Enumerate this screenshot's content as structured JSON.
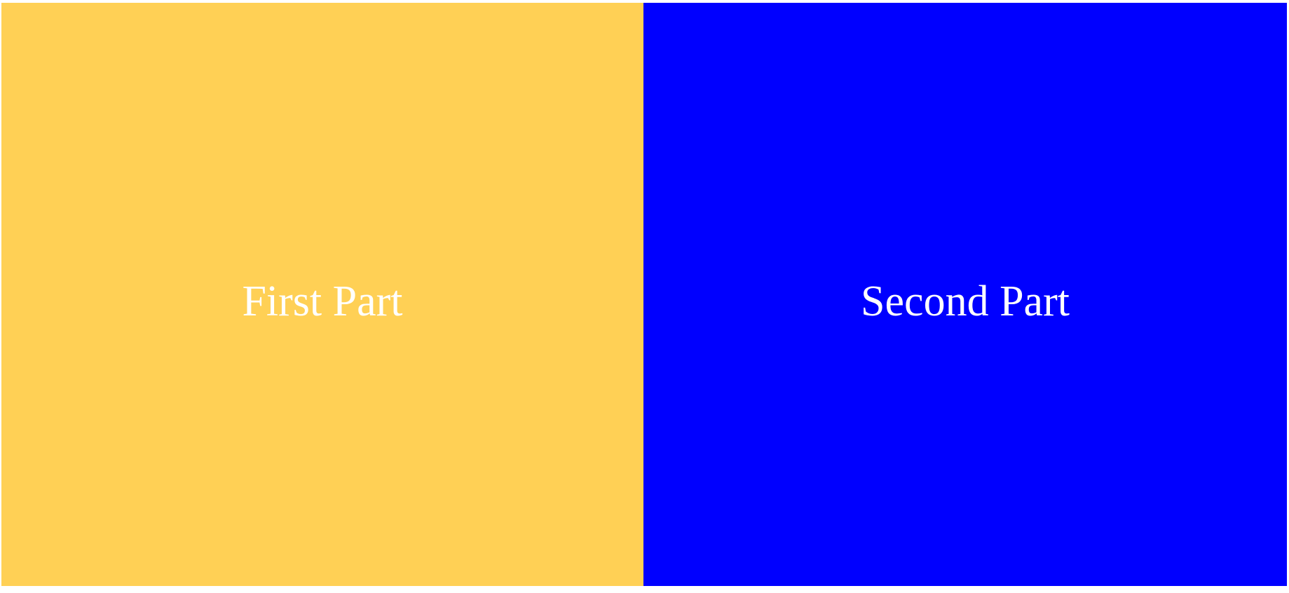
{
  "panels": {
    "first": {
      "label": "First Part",
      "background_color": "#FFD055",
      "text_color": "#FFFFFF"
    },
    "second": {
      "label": "Second Part",
      "background_color": "#0000FF",
      "text_color": "#FFFFFF"
    }
  }
}
